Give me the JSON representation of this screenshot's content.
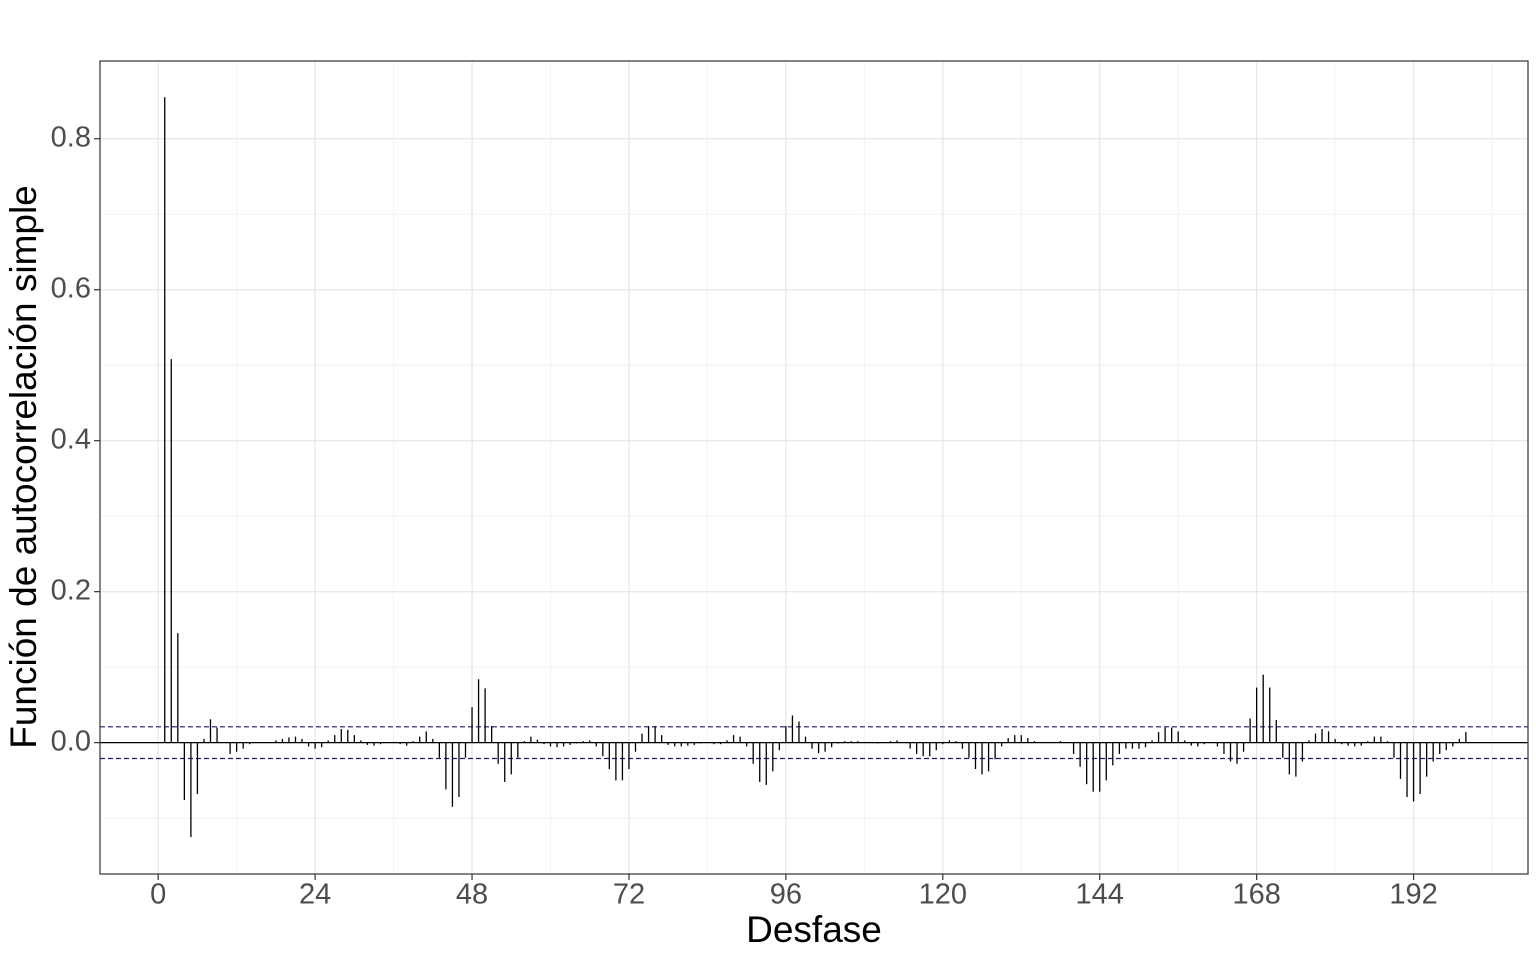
{
  "chart_data": {
    "type": "acf",
    "xlabel": "Desfase",
    "ylabel": "Función de autocorrelación simple",
    "xlim": [
      -8.9,
      209.5
    ],
    "ylim": [
      -0.174,
      0.903
    ],
    "xticks": [
      0,
      24,
      48,
      72,
      96,
      120,
      144,
      168,
      192
    ],
    "xminorticks": [
      12,
      36,
      60,
      84,
      108,
      132,
      156,
      180,
      204
    ],
    "yticks": [
      {
        "value": 0,
        "label": "0.0"
      },
      0.2,
      0.4,
      0.6,
      0.8
    ],
    "yminorticks": [
      -0.1,
      0.1,
      0.3,
      0.5,
      0.7
    ],
    "grid": true,
    "conf_limit": 0.021,
    "color": "#000000",
    "conf_color": "#1a1a6e",
    "x": [
      1,
      2,
      3,
      4,
      5,
      6,
      7,
      8,
      9,
      10,
      11,
      12,
      13,
      14,
      15,
      16,
      17,
      18,
      19,
      20,
      21,
      22,
      23,
      24,
      25,
      26,
      27,
      28,
      29,
      30,
      31,
      32,
      33,
      34,
      35,
      36,
      37,
      38,
      39,
      40,
      41,
      42,
      43,
      44,
      45,
      46,
      47,
      48,
      49,
      50,
      51,
      52,
      53,
      54,
      55,
      56,
      57,
      58,
      59,
      60,
      61,
      62,
      63,
      64,
      65,
      66,
      67,
      68,
      69,
      70,
      71,
      72,
      73,
      74,
      75,
      76,
      77,
      78,
      79,
      80,
      81,
      82,
      83,
      84,
      85,
      86,
      87,
      88,
      89,
      90,
      91,
      92,
      93,
      94,
      95,
      96,
      97,
      98,
      99,
      100,
      101,
      102,
      103,
      104,
      105,
      106,
      107,
      108,
      109,
      110,
      111,
      112,
      113,
      114,
      115,
      116,
      117,
      118,
      119,
      120,
      121,
      122,
      123,
      124,
      125,
      126,
      127,
      128,
      129,
      130,
      131,
      132,
      133,
      134,
      135,
      136,
      137,
      138,
      139,
      140,
      141,
      142,
      143,
      144,
      145,
      146,
      147,
      148,
      149,
      150,
      151,
      152,
      153,
      154,
      155,
      156,
      157,
      158,
      159,
      160,
      161,
      162,
      163,
      164,
      165,
      166,
      167,
      168,
      169,
      170,
      171,
      172,
      173,
      174,
      175,
      176,
      177,
      178,
      179,
      180,
      181,
      182,
      183,
      184,
      185,
      186,
      187,
      188,
      189,
      190,
      191,
      192,
      193,
      194,
      195,
      196,
      197,
      198,
      199,
      200
    ],
    "values": [
      0.855,
      0.508,
      0.145,
      -0.076,
      -0.125,
      -0.068,
      0.005,
      0.031,
      0.02,
      0.0,
      -0.015,
      -0.012,
      -0.008,
      -0.002,
      0.0,
      0.0,
      0.0,
      0.003,
      0.005,
      0.007,
      0.008,
      0.005,
      -0.005,
      -0.008,
      -0.006,
      0.003,
      0.01,
      0.018,
      0.017,
      0.01,
      0.003,
      -0.003,
      -0.004,
      -0.002,
      0.0,
      0.001,
      -0.002,
      -0.004,
      0.002,
      0.008,
      0.015,
      0.005,
      -0.02,
      -0.062,
      -0.085,
      -0.072,
      -0.02,
      0.047,
      0.084,
      0.072,
      0.022,
      -0.028,
      -0.052,
      -0.042,
      -0.02,
      0.002,
      0.008,
      0.004,
      -0.002,
      -0.005,
      -0.006,
      -0.005,
      -0.003,
      -0.001,
      0.002,
      0.003,
      -0.005,
      -0.018,
      -0.035,
      -0.05,
      -0.05,
      -0.035,
      -0.012,
      0.012,
      0.022,
      0.022,
      0.01,
      -0.003,
      -0.005,
      -0.005,
      -0.004,
      -0.003,
      -0.001,
      0.0,
      -0.002,
      -0.002,
      0.003,
      0.01,
      0.008,
      -0.005,
      -0.028,
      -0.052,
      -0.056,
      -0.038,
      -0.01,
      0.022,
      0.036,
      0.028,
      0.008,
      -0.008,
      -0.014,
      -0.012,
      -0.006,
      -0.001,
      0.002,
      0.002,
      0.002,
      0.001,
      0.0,
      -0.001,
      0.0,
      0.002,
      0.003,
      0.0,
      -0.008,
      -0.015,
      -0.018,
      -0.018,
      -0.01,
      -0.002,
      0.003,
      0.002,
      -0.008,
      -0.02,
      -0.035,
      -0.042,
      -0.038,
      -0.022,
      -0.005,
      0.006,
      0.01,
      0.01,
      0.006,
      0.002,
      0.001,
      0.0,
      0.001,
      0.002,
      0.0,
      -0.015,
      -0.032,
      -0.055,
      -0.065,
      -0.065,
      -0.05,
      -0.03,
      -0.015,
      -0.008,
      -0.008,
      -0.008,
      -0.006,
      0.003,
      0.014,
      0.02,
      0.02,
      0.015,
      0.003,
      -0.004,
      -0.005,
      -0.002,
      0.0,
      -0.005,
      -0.015,
      -0.025,
      -0.028,
      -0.012,
      0.032,
      0.073,
      0.09,
      0.073,
      0.03,
      -0.02,
      -0.042,
      -0.045,
      -0.025,
      0.003,
      0.012,
      0.018,
      0.015,
      0.005,
      -0.002,
      -0.004,
      -0.005,
      -0.004,
      0.002,
      0.008,
      0.008,
      0.002,
      -0.02,
      -0.048,
      -0.072,
      -0.078,
      -0.068,
      -0.045,
      -0.025,
      -0.015,
      -0.01,
      -0.005,
      0.005,
      0.014
    ]
  }
}
